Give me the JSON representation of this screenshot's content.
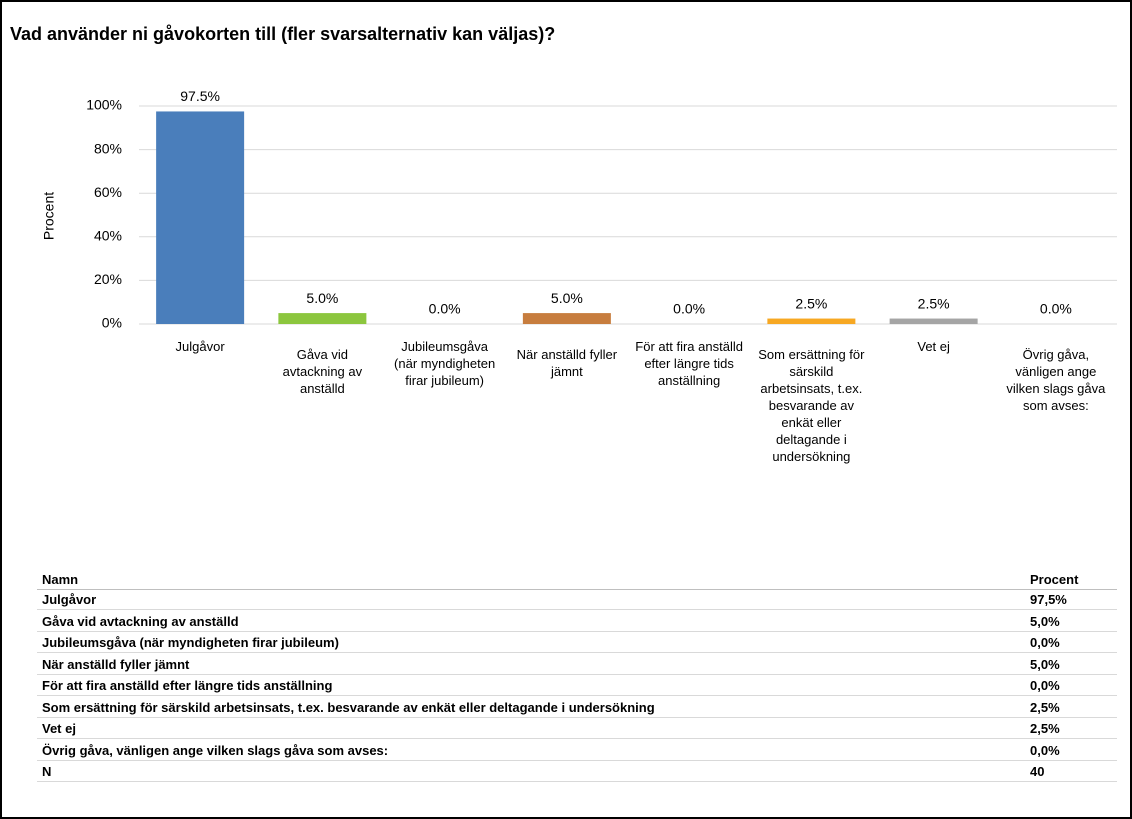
{
  "chart_data": {
    "type": "bar",
    "title": "Vad använder ni gåvokorten till (fler svarsalternativ kan väljas)?",
    "ylabel": "Procent",
    "categories": [
      "Julgåvor",
      "Gåva vid avtackning av anställd",
      "Jubileumsgåva (när myndigheten firar jubileum)",
      "När anställd fyller jämnt",
      "För att fira anställd efter längre tids anställning",
      "Som ersättning för särskild arbetsinsats, t.ex. besvarande av enkät eller deltagande i undersökning",
      "Vet ej",
      "Övrig gåva, vänligen ange vilken slags gåva som avses:"
    ],
    "values": [
      97.5,
      5.0,
      0.0,
      5.0,
      0.0,
      2.5,
      2.5,
      0.0
    ],
    "value_labels": [
      "97.5%",
      "5.0%",
      "0.0%",
      "5.0%",
      "0.0%",
      "2.5%",
      "2.5%",
      "0.0%"
    ],
    "colors": [
      "#4a7ebb",
      "#8cc63e",
      "#a64d79",
      "#c77d3e",
      "#5b9bd5",
      "#f7a823",
      "#a5a5a5",
      "#4bacc6"
    ],
    "ylim": [
      0,
      100
    ],
    "yticks": [
      {
        "value": 0,
        "label": "0%"
      },
      {
        "value": 20,
        "label": "20%"
      },
      {
        "value": 40,
        "label": "40%"
      },
      {
        "value": 60,
        "label": "60%"
      },
      {
        "value": 80,
        "label": "80%"
      },
      {
        "value": 100,
        "label": "100%"
      }
    ],
    "grid": true
  },
  "table": {
    "header": [
      "Namn",
      "Procent"
    ],
    "rows": [
      [
        "Julgåvor",
        "97,5%"
      ],
      [
        "Gåva vid avtackning av anställd",
        "5,0%"
      ],
      [
        "Jubileumsgåva (när myndigheten firar jubileum)",
        "0,0%"
      ],
      [
        "När anställd fyller jämnt",
        "5,0%"
      ],
      [
        "För att fira anställd efter längre tids anställning",
        "0,0%"
      ],
      [
        "Som ersättning för särskild arbetsinsats, t.ex. besvarande av enkät eller deltagande i undersökning",
        "2,5%"
      ],
      [
        "Vet ej",
        "2,5%"
      ],
      [
        "Övrig gåva, vänligen ange vilken slags gåva som avses:",
        "0,0%"
      ],
      [
        "N",
        "40"
      ]
    ]
  }
}
